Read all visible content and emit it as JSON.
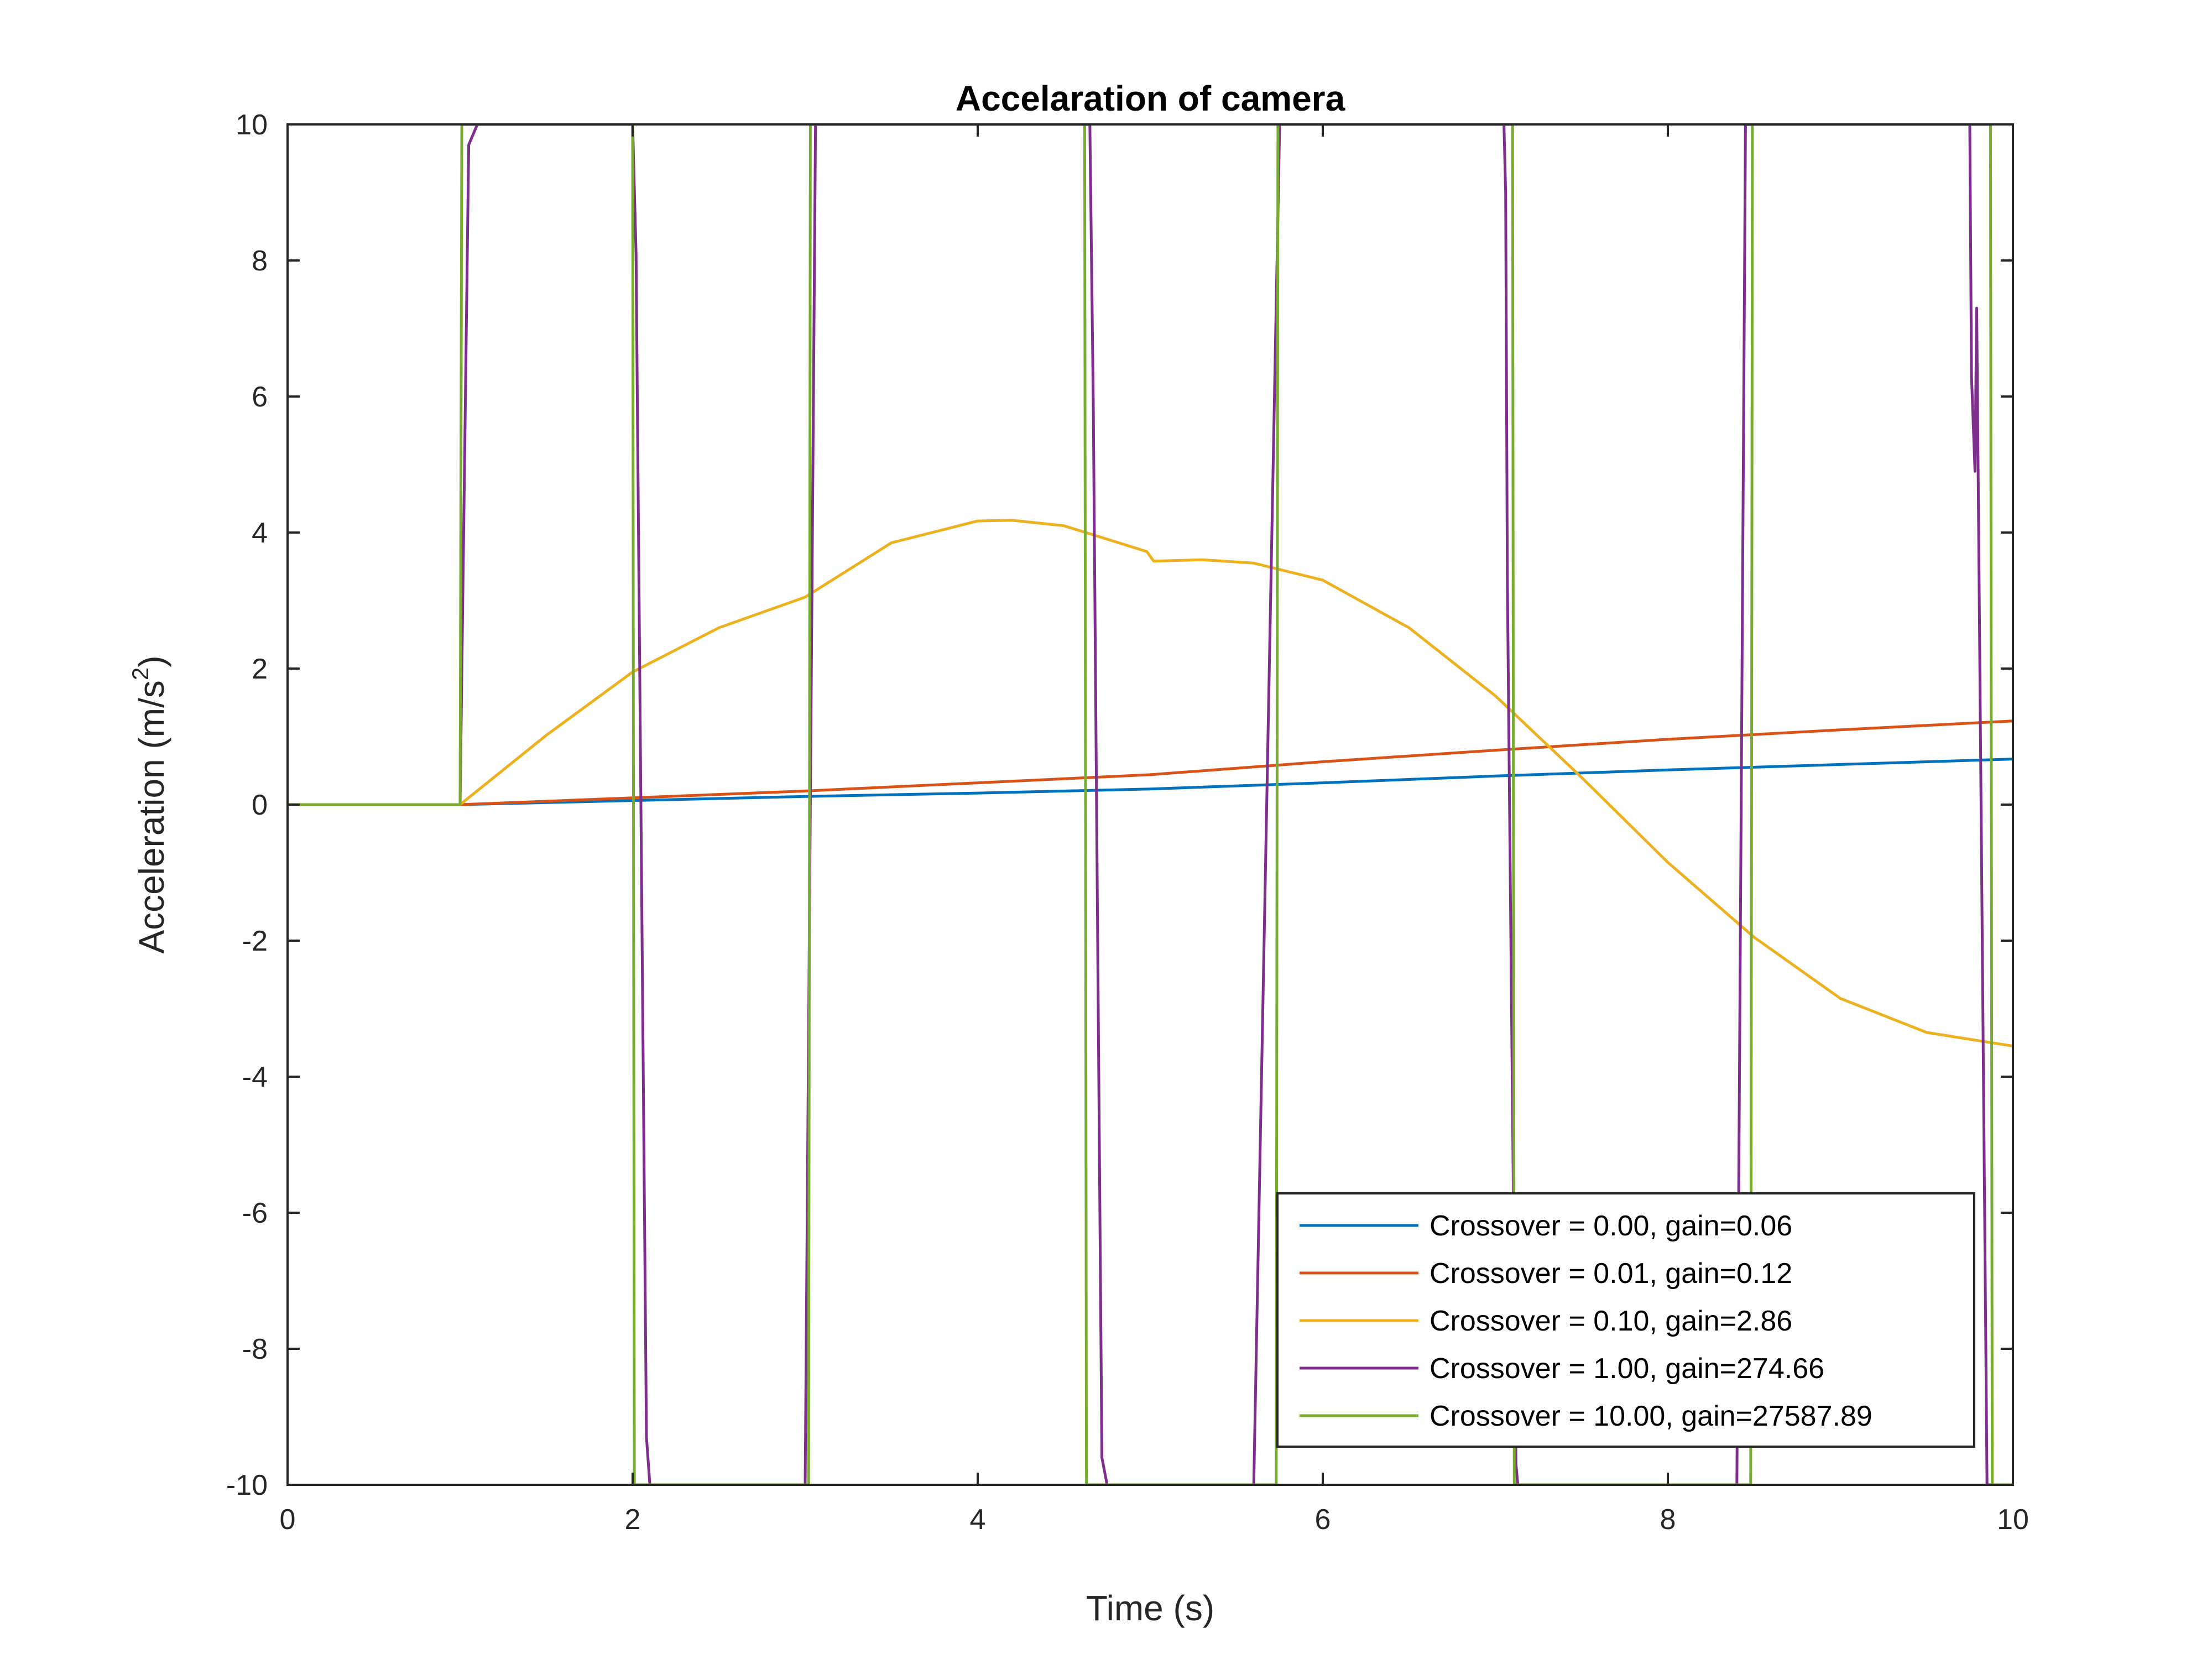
{
  "chart_data": {
    "type": "line",
    "title": "Accelaration of camera",
    "xlabel": "Time (s)",
    "ylabel": "Acceleration (m/s",
    "ylabel_superscript": "2",
    "xlim": [
      0,
      10
    ],
    "ylim": [
      -10,
      10
    ],
    "xticks": [
      0,
      2,
      4,
      6,
      8,
      10
    ],
    "yticks": [
      -10,
      -8,
      -6,
      -4,
      -2,
      0,
      2,
      4,
      6,
      8,
      10
    ],
    "grid": false,
    "legend_position": "bottom-right",
    "series": [
      {
        "name": "Crossover = 0.00, gain=0.06",
        "color": "#0072BD",
        "x": [
          0,
          1,
          2,
          3,
          4,
          5,
          6,
          7,
          8,
          9,
          10
        ],
        "y": [
          0,
          0,
          0.06,
          0.12,
          0.17,
          0.23,
          0.32,
          0.42,
          0.51,
          0.59,
          0.67
        ]
      },
      {
        "name": "Crossover = 0.01, gain=0.12",
        "color": "#D95319",
        "x": [
          0,
          1,
          2,
          3,
          4,
          5,
          6,
          7,
          8,
          9,
          10
        ],
        "y": [
          0,
          0,
          0.1,
          0.2,
          0.32,
          0.44,
          0.63,
          0.8,
          0.96,
          1.1,
          1.23
        ]
      },
      {
        "name": "Crossover = 0.10, gain=2.86",
        "color": "#EDB120",
        "x": [
          0,
          1,
          1.5,
          2,
          2.5,
          3,
          3.5,
          4,
          4.2,
          4.5,
          4.98,
          5.02,
          5.3,
          5.6,
          6,
          6.5,
          7,
          7.5,
          8,
          8.5,
          9,
          9.5,
          10
        ],
        "y": [
          0,
          0,
          1.02,
          1.95,
          2.6,
          3.05,
          3.85,
          4.17,
          4.18,
          4.1,
          3.72,
          3.58,
          3.6,
          3.55,
          3.3,
          2.6,
          1.6,
          0.4,
          -0.85,
          -1.95,
          -2.85,
          -3.35,
          -3.55
        ]
      },
      {
        "name": "Crossover = 1.00, gain=274.66",
        "color": "#7E2F8E",
        "x": [
          0,
          1,
          1.05,
          1.1,
          2,
          2.02,
          2.08,
          2.1,
          3,
          3.06,
          3.1,
          4.65,
          4.67,
          4.72,
          4.75,
          5.6,
          5.75,
          7.05,
          7.06,
          7.07,
          7.12,
          7.13,
          8.4,
          8.45,
          9.75,
          9.76,
          9.78,
          9.79,
          9.85,
          10
        ],
        "y": [
          0,
          0,
          9.7,
          10,
          10,
          8.1,
          -9.3,
          -10,
          -10,
          10,
          10,
          10,
          5.9,
          -9.6,
          -10,
          -10,
          10,
          10,
          9.0,
          3.3,
          -9.7,
          -10,
          -10,
          10,
          10,
          6.3,
          4.9,
          7.3,
          -10,
          -10
        ]
      },
      {
        "name": "Crossover = 10.00, gain=27587.89",
        "color": "#77AC30",
        "x": [
          0,
          1,
          1.01,
          2,
          2.01,
          3.02,
          3.03,
          4.62,
          4.63,
          5.73,
          5.74,
          7.1,
          7.11,
          8.48,
          8.49,
          9.87,
          9.88,
          10
        ],
        "y": [
          0,
          0,
          10,
          10,
          -10,
          -10,
          10,
          10,
          -10,
          -10,
          10,
          10,
          -10,
          -10,
          10,
          10,
          -10,
          -10
        ]
      }
    ]
  }
}
